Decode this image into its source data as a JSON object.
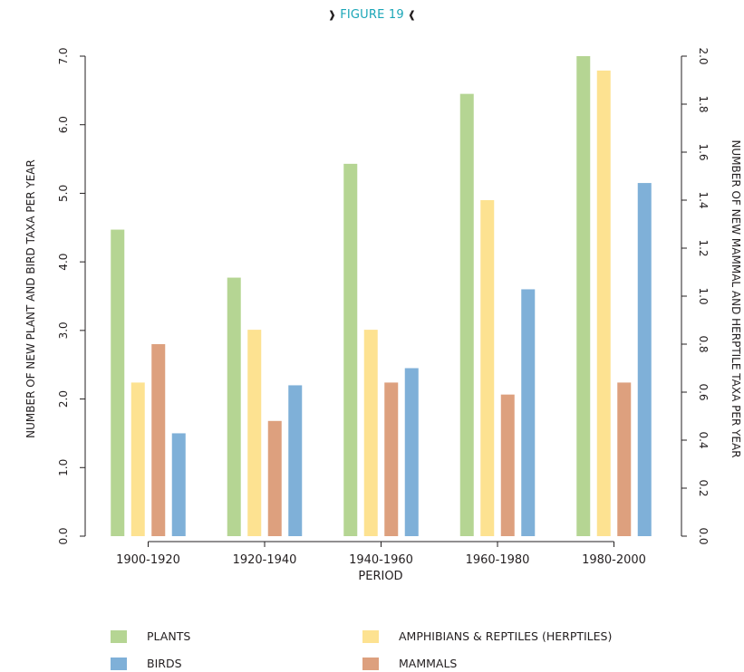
{
  "figure_label": "FIGURE 19",
  "colors": {
    "plants": "#b5d593",
    "herptiles": "#fde291",
    "mammals": "#dda07e",
    "birds": "#7fb0d8",
    "title": "#1aa6b7",
    "axis": "#231f20"
  },
  "chart_data": {
    "type": "bar",
    "xlabel": "PERIOD",
    "ylabel_left": "NUMBER OF NEW PLANT AND BIRD TAXA PER YEAR",
    "ylabel_right": "NUMBER OF NEW MAMMAL AND HERPTILE TAXA PER YEAR",
    "ylim_left": [
      0,
      7
    ],
    "ylim_right": [
      0,
      2
    ],
    "yticks_left": [
      "0.0",
      "1.0",
      "2.0",
      "3.0",
      "4.0",
      "5.0",
      "6.0",
      "7.0"
    ],
    "yticks_right": [
      "0.0",
      "0.2",
      "0.4",
      "0.6",
      "0.8",
      "1.0",
      "1.2",
      "1.4",
      "1.6",
      "1.8",
      "2.0"
    ],
    "categories": [
      "1900-1920",
      "1920-1940",
      "1940-1960",
      "1960-1980",
      "1980-2000"
    ],
    "series": [
      {
        "name": "PLANTS",
        "axis": "left",
        "color_key": "plants",
        "values": [
          4.47,
          3.77,
          5.43,
          6.45,
          7.0
        ]
      },
      {
        "name": "AMPHIBIANS & REPTILES (HERPTILES)",
        "axis": "right",
        "color_key": "herptiles",
        "values": [
          0.64,
          0.86,
          0.86,
          1.4,
          1.94
        ]
      },
      {
        "name": "MAMMALS",
        "axis": "right",
        "color_key": "mammals",
        "values": [
          0.8,
          0.48,
          0.64,
          0.59,
          0.64
        ]
      },
      {
        "name": "BIRDS",
        "axis": "left",
        "color_key": "birds",
        "values": [
          1.5,
          2.2,
          2.45,
          3.6,
          5.15
        ]
      }
    ],
    "grid": false,
    "legend_position": "bottom"
  },
  "legend": [
    {
      "label": "PLANTS",
      "color_key": "plants"
    },
    {
      "label": "AMPHIBIANS & REPTILES (HERPTILES)",
      "color_key": "herptiles"
    },
    {
      "label": "BIRDS",
      "color_key": "birds"
    },
    {
      "label": "MAMMALS",
      "color_key": "mammals"
    }
  ]
}
